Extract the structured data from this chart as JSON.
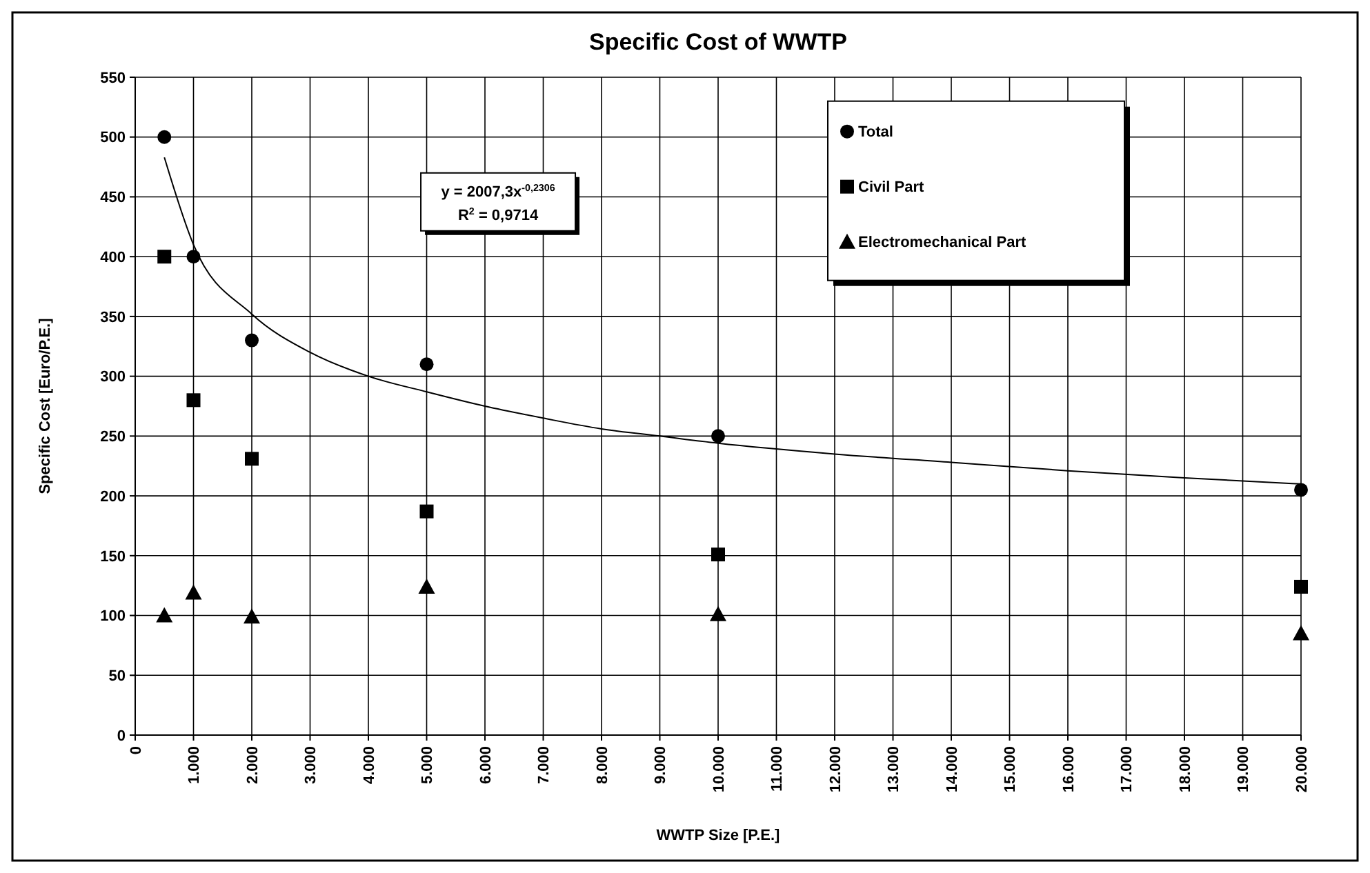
{
  "chart_data": {
    "type": "scatter",
    "title": "Specific Cost of WWTP",
    "xlabel": "WWTP Size [P.E.]",
    "ylabel": "Specific Cost [Euro/P.E.]",
    "xlim": [
      0,
      20000
    ],
    "xticks": [
      0,
      {
        "value": 1000,
        "label": "1.000"
      },
      {
        "value": 2000,
        "label": "2.000"
      },
      {
        "value": 3000,
        "label": "3.000"
      },
      {
        "value": 4000,
        "label": "4.000"
      },
      {
        "value": 5000,
        "label": "5.000"
      },
      {
        "value": 6000,
        "label": "6.000"
      },
      {
        "value": 7000,
        "label": "7.000"
      },
      {
        "value": 8000,
        "label": "8.000"
      },
      {
        "value": 9000,
        "label": "9.000"
      },
      {
        "value": 10000,
        "label": "10.000"
      },
      {
        "value": 11000,
        "label": "11.000"
      },
      {
        "value": 12000,
        "label": "12.000"
      },
      {
        "value": 13000,
        "label": "13.000"
      },
      {
        "value": 14000,
        "label": "14.000"
      },
      {
        "value": 15000,
        "label": "15.000"
      },
      {
        "value": 16000,
        "label": "16.000"
      },
      {
        "value": 17000,
        "label": "17.000"
      },
      {
        "value": 18000,
        "label": "18.000"
      },
      {
        "value": 19000,
        "label": "19.000"
      },
      {
        "value": 20000,
        "label": "20.000"
      }
    ],
    "ylim": [
      0,
      550
    ],
    "yticks": [
      0,
      50,
      100,
      150,
      200,
      250,
      300,
      350,
      400,
      450,
      500,
      550
    ],
    "grid": true,
    "legend": "top right",
    "x": [
      500,
      1000,
      2000,
      5000,
      10000,
      20000
    ],
    "series": [
      {
        "name": "Total",
        "color": "#000000",
        "marker": "circle",
        "values": [
          500,
          400,
          330,
          310,
          250,
          205
        ]
      },
      {
        "name": "Civil Part",
        "color": "#000000",
        "marker": "square",
        "values": [
          400,
          280,
          231,
          187,
          151,
          124
        ]
      },
      {
        "name": "Electromechanical Part",
        "color": "#000000",
        "marker": "triangle",
        "values": [
          100,
          119,
          99,
          124,
          101,
          85
        ]
      },
      {
        "type": "line",
        "color": "#000000",
        "marker": "none",
        "x": [
          500,
          1000,
          2000,
          3000,
          4000,
          5000,
          6000,
          7000,
          8000,
          9000,
          10000,
          12000,
          14000,
          16000,
          18000,
          20000
        ],
        "values": [
          483,
          410,
          352,
          320,
          300,
          287,
          275,
          265,
          256,
          250,
          244,
          235,
          228,
          221,
          215,
          210
        ]
      }
    ],
    "annotations": [
      "y = 2007,3x$^{-0,2306}$",
      "R$^{2}$ = 0,9714"
    ]
  }
}
